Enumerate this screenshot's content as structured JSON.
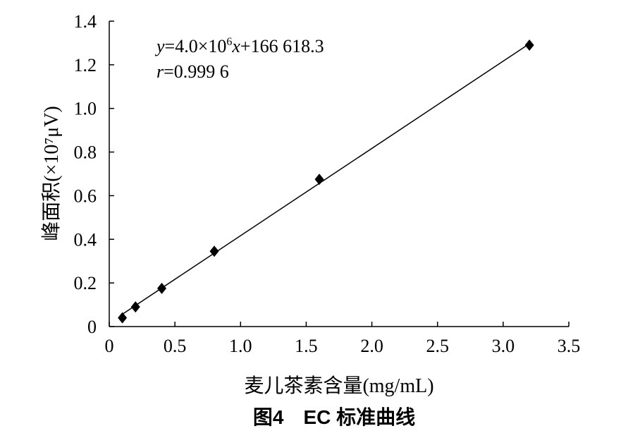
{
  "figure": {
    "caption": "图4　EC 标准曲线"
  },
  "chart_data": {
    "type": "scatter",
    "xlabel": "麦儿茶素含量(mg/mL)",
    "ylabel": "峰面积(×10⁷μV)",
    "xlim": [
      0,
      3.5
    ],
    "ylim": [
      0,
      1.4
    ],
    "x_ticks": [
      "0",
      "0.5",
      "1.0",
      "1.5",
      "2.0",
      "2.5",
      "3.0",
      "3.5"
    ],
    "y_ticks": [
      "0",
      "0.2",
      "0.4",
      "0.6",
      "0.8",
      "1.0",
      "1.2",
      "1.4"
    ],
    "x_tick_values": [
      0,
      0.5,
      1.0,
      1.5,
      2.0,
      2.5,
      3.0,
      3.5
    ],
    "y_tick_values": [
      0,
      0.2,
      0.4,
      0.6,
      0.8,
      1.0,
      1.2,
      1.4
    ],
    "grid": false,
    "series": [
      {
        "marker": "diamond",
        "color": "#000000",
        "x": [
          0.1,
          0.2,
          0.4,
          0.8,
          1.6,
          3.2
        ],
        "y": [
          0.04,
          0.09,
          0.175,
          0.345,
          0.675,
          1.29
        ]
      }
    ],
    "trendline": {
      "type": "linear",
      "slope": 0.4,
      "intercept": 0.0166618,
      "x_range": [
        0.1,
        3.2
      ],
      "color": "#000000"
    },
    "annotations": {
      "equation": {
        "y_var": "y",
        "eq_mid": "=4.0×10",
        "exponent": "6",
        "x_var": "x",
        "eq_tail": "+166 618.3"
      },
      "correlation": {
        "r_var": "r",
        "value": "=0.999 6"
      }
    }
  }
}
